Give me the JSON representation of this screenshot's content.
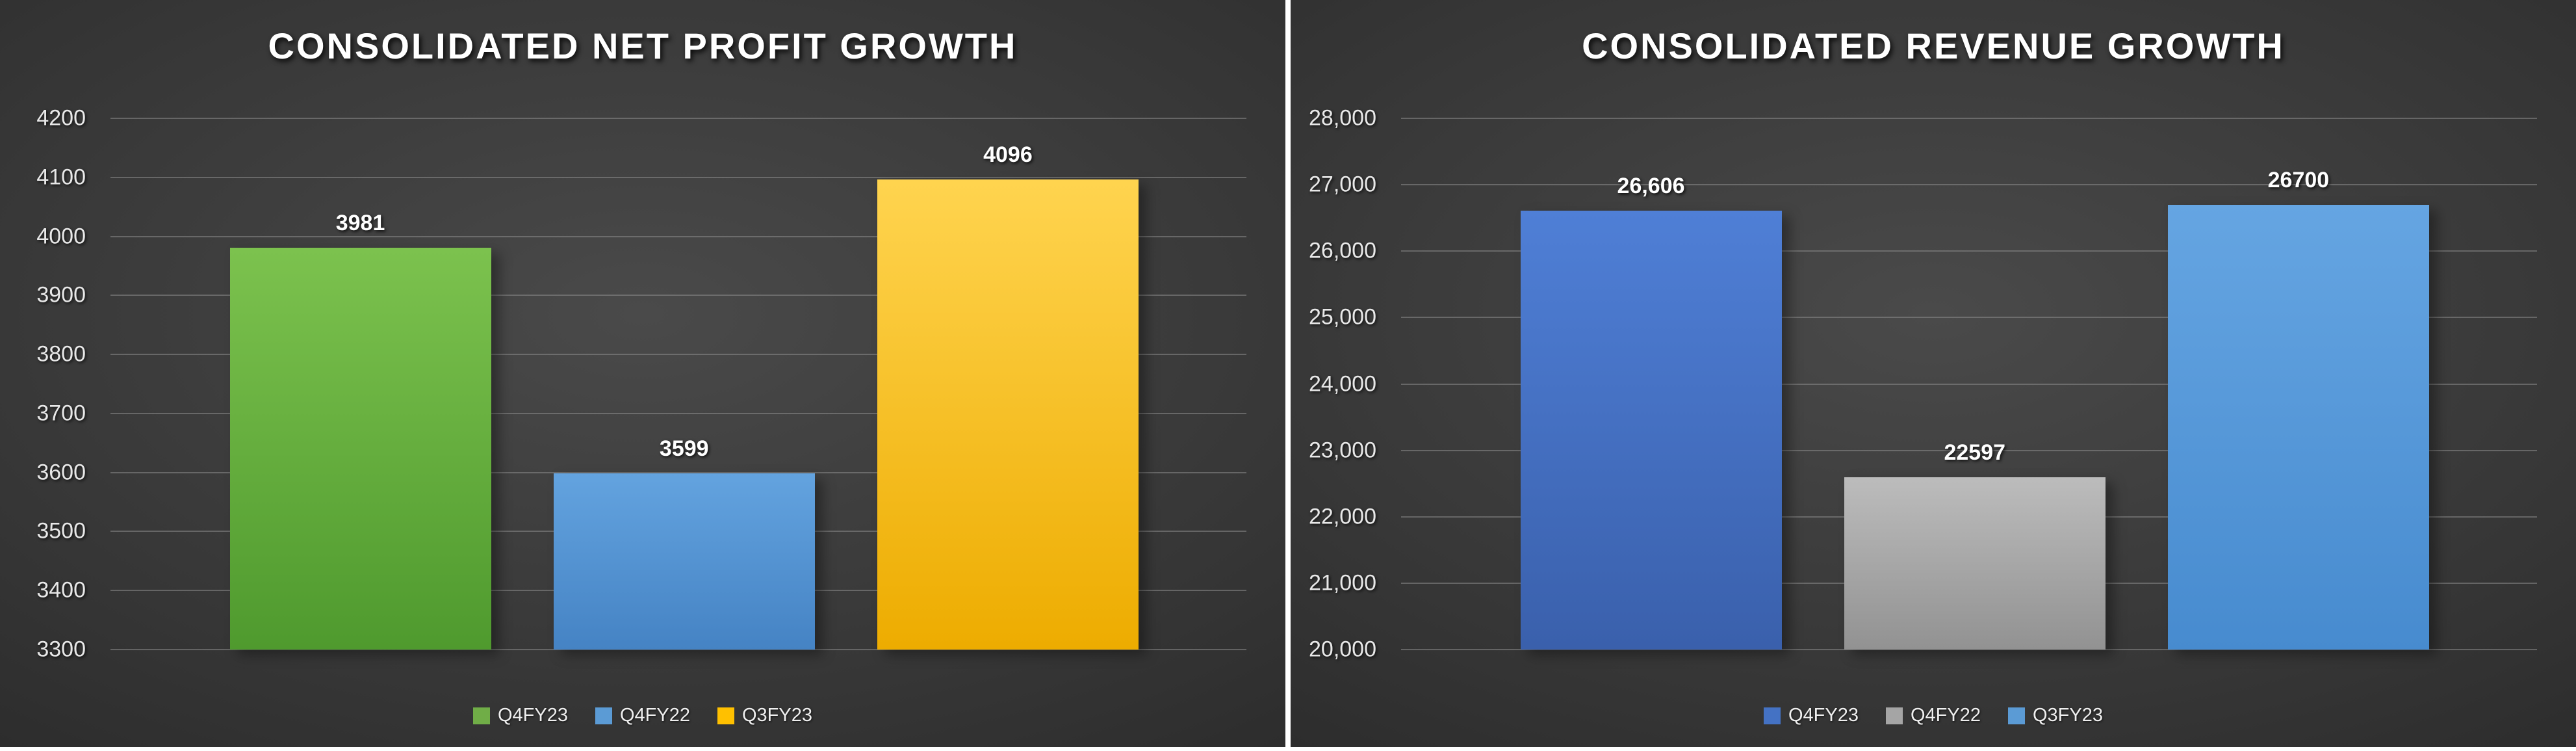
{
  "chart_data": [
    {
      "type": "bar",
      "title": "CONSOLIDATED NET PROFIT GROWTH",
      "categories": [
        "Q4FY23",
        "Q4FY22",
        "Q3FY23"
      ],
      "values": [
        3981,
        3599,
        4096
      ],
      "data_labels": [
        "3981",
        "3599",
        "4096"
      ],
      "ylim": [
        3300,
        4200
      ],
      "y_tick_labels": [
        "3300",
        "3400",
        "3500",
        "3600",
        "3700",
        "3800",
        "3900",
        "4000",
        "4100",
        "4200"
      ],
      "grid": true,
      "legend_position": "bottom",
      "legend": [
        {
          "label": "Q4FY23",
          "color": "#70AD47"
        },
        {
          "label": "Q4FY22",
          "color": "#5B9BD5"
        },
        {
          "label": "Q3FY23",
          "color": "#FFC000"
        }
      ],
      "series_colors": [
        {
          "top": "#7CC24E",
          "bottom": "#4F9A2E"
        },
        {
          "top": "#63A3DF",
          "bottom": "#4583C4"
        },
        {
          "top": "#FFD44F",
          "bottom": "#EDAC00"
        }
      ]
    },
    {
      "type": "bar",
      "title": "CONSOLIDATED REVENUE GROWTH",
      "categories": [
        "Q4FY23",
        "Q4FY22",
        "Q3FY23"
      ],
      "values": [
        26606,
        22597,
        26700
      ],
      "data_labels": [
        "26,606",
        "22597",
        "26700"
      ],
      "ylim": [
        20000,
        28000
      ],
      "y_tick_labels": [
        "20,000",
        "21,000",
        "22,000",
        "23,000",
        "24,000",
        "25,000",
        "26,000",
        "27,000",
        "28,000"
      ],
      "grid": true,
      "legend_position": "bottom",
      "legend": [
        {
          "label": "Q4FY23",
          "color": "#4472C4"
        },
        {
          "label": "Q4FY22",
          "color": "#A5A5A5"
        },
        {
          "label": "Q3FY23",
          "color": "#5B9BD5"
        }
      ],
      "series_colors": [
        {
          "top": "#4F7FD6",
          "bottom": "#3A60AC"
        },
        {
          "top": "#BCBCBC",
          "bottom": "#929292"
        },
        {
          "top": "#65A5E2",
          "bottom": "#478BCF"
        }
      ]
    }
  ]
}
